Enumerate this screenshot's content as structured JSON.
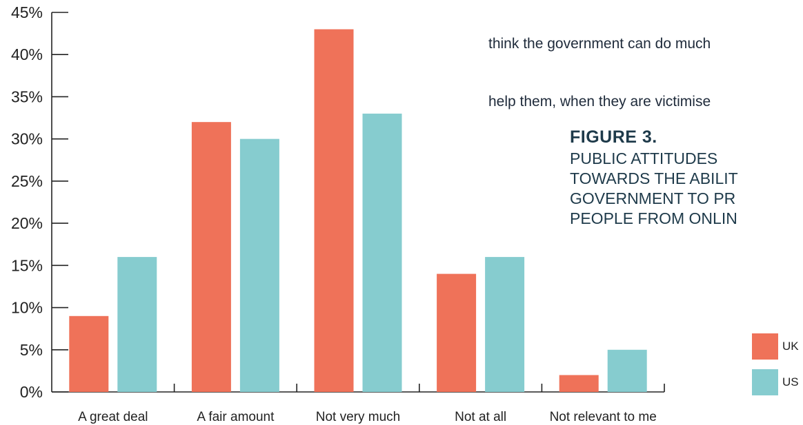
{
  "intro_text": {
    "lines": [
      "think the government can do much",
      "help them, when they are victimise"
    ]
  },
  "figure": {
    "label": "FIGURE 3.",
    "caption_lines": [
      "PUBLIC ATTITUDES",
      "TOWARDS THE ABILIT",
      "GOVERNMENT TO PR",
      "PEOPLE FROM ONLIN"
    ]
  },
  "legend": {
    "items": [
      {
        "label": "UK",
        "color": "#ef7259"
      },
      {
        "label": "US",
        "color": "#86cccf"
      }
    ]
  },
  "chart_data": {
    "type": "bar",
    "categories": [
      "A great deal",
      "A fair amount",
      "Not very much",
      "Not at all",
      "Not relevant to me"
    ],
    "series": [
      {
        "name": "UK",
        "color": "#ef7259",
        "values": [
          9,
          32,
          43,
          14,
          2
        ]
      },
      {
        "name": "US",
        "color": "#86cccf",
        "values": [
          16,
          30,
          33,
          16,
          5
        ]
      }
    ],
    "yticks": [
      "0%",
      "5%",
      "10%",
      "15%",
      "20%",
      "25%",
      "30%",
      "35%",
      "40%",
      "45%"
    ],
    "ylim": [
      0,
      45
    ],
    "grid": false,
    "legend_position": "right"
  }
}
